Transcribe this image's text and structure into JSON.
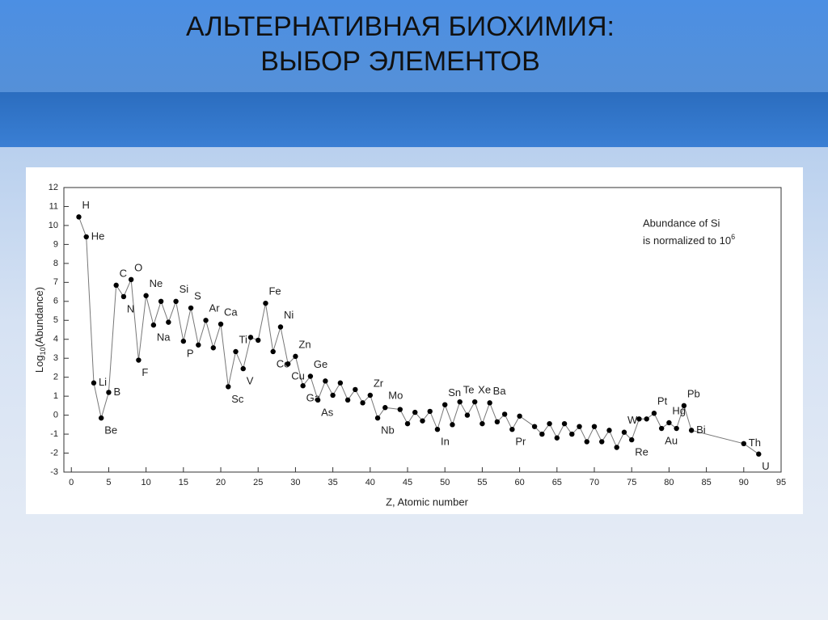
{
  "slide": {
    "title_lines": [
      "АЛЬТЕРНАТИВНАЯ БИОХИМИЯ:",
      "ВЫБОР ЭЛЕМЕНТОВ"
    ]
  },
  "chart_data": {
    "type": "scatter-line",
    "x_label": "Z, Atomic number",
    "y_label": {
      "main": "Log",
      "sub": "10",
      "rest": "(Abundance)"
    },
    "annotation": [
      "Abundance of Si",
      "is normalized to 10"
    ],
    "annotation_sup": "6",
    "color": "#000000",
    "x": [
      1,
      2,
      3,
      4,
      5,
      6,
      7,
      8,
      9,
      10,
      11,
      12,
      13,
      14,
      15,
      16,
      17,
      18,
      19,
      20,
      21,
      22,
      23,
      24,
      25,
      26,
      27,
      28,
      29,
      30,
      31,
      32,
      33,
      34,
      35,
      36,
      37,
      38,
      39,
      40,
      41,
      42,
      44,
      45,
      46,
      47,
      48,
      49,
      50,
      51,
      52,
      53,
      54,
      55,
      56,
      57,
      58,
      59,
      60,
      62,
      63,
      64,
      65,
      66,
      67,
      68,
      69,
      70,
      71,
      72,
      73,
      74,
      75,
      76,
      77,
      78,
      79,
      80,
      81,
      82,
      83,
      90,
      92
    ],
    "y": [
      10.45,
      9.4,
      1.7,
      -0.15,
      1.2,
      6.85,
      6.25,
      7.15,
      2.9,
      6.3,
      4.75,
      6.0,
      4.9,
      6.0,
      3.9,
      5.65,
      3.7,
      5.0,
      3.55,
      4.8,
      1.5,
      3.35,
      2.45,
      4.1,
      3.95,
      5.9,
      3.35,
      4.65,
      2.7,
      3.1,
      1.55,
      2.05,
      0.8,
      1.8,
      1.05,
      1.7,
      0.8,
      1.35,
      0.65,
      1.05,
      -0.15,
      0.4,
      0.3,
      -0.45,
      0.15,
      -0.3,
      0.2,
      -0.75,
      0.55,
      -0.5,
      0.7,
      0.0,
      0.7,
      -0.45,
      0.65,
      -0.35,
      0.05,
      -0.75,
      -0.05,
      -0.6,
      -1.0,
      -0.45,
      -1.2,
      -0.45,
      -1.0,
      -0.6,
      -1.4,
      -0.6,
      -1.4,
      -0.8,
      -1.7,
      -0.9,
      -1.3,
      -0.2,
      -0.2,
      0.1,
      -0.7,
      -0.4,
      -0.7,
      0.5,
      -0.8,
      -1.5,
      -2.05
    ],
    "labels": [
      "H",
      "He",
      "Li",
      "Be",
      "B",
      "C",
      "N",
      "O",
      "F",
      "Ne",
      "Na",
      null,
      null,
      "Si",
      "P",
      "S",
      null,
      "Ar",
      null,
      "Ca",
      "Sc",
      "Ti",
      "V",
      null,
      null,
      "Fe",
      "Co",
      "Ni",
      "Cu",
      "Zn",
      "Ga",
      "Ge",
      "As",
      null,
      null,
      null,
      null,
      null,
      null,
      "Zr",
      "Nb",
      "Mo",
      null,
      null,
      null,
      null,
      null,
      "In",
      "Sn",
      null,
      "Te",
      null,
      "Xe",
      null,
      "Ba",
      null,
      null,
      "Pr",
      null,
      null,
      null,
      null,
      null,
      null,
      null,
      null,
      null,
      null,
      null,
      null,
      null,
      "W",
      "Re",
      null,
      null,
      "Pt",
      "Au",
      "Hg",
      null,
      "Pb",
      "Bi",
      "Th",
      "U"
    ],
    "xlim": [
      -1,
      95
    ],
    "ylim": [
      -3,
      12
    ],
    "xticks": [
      0,
      5,
      10,
      15,
      20,
      25,
      30,
      35,
      40,
      45,
      50,
      55,
      60,
      65,
      70,
      75,
      80,
      85,
      90,
      95
    ],
    "yticks": [
      -3,
      -2,
      -1,
      0,
      1,
      2,
      3,
      4,
      5,
      6,
      7,
      8,
      9,
      10,
      11,
      12
    ]
  }
}
